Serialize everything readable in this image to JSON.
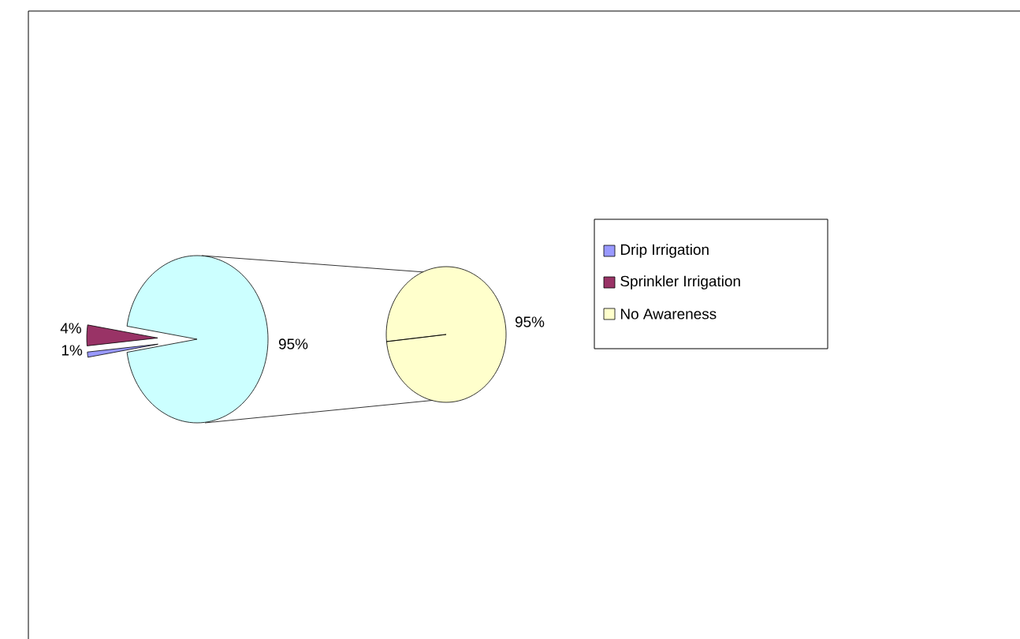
{
  "chart_data": {
    "type": "pie",
    "categories": [
      "Drip Irrigation",
      "Sprinkler Irrigation",
      "No Awareness"
    ],
    "series": [
      {
        "values": [
          1,
          4,
          95
        ],
        "colors": [
          "#9999ff",
          "#993366",
          "#ccffff"
        ],
        "value_labels": [
          "1%",
          "4%",
          "95%"
        ]
      },
      {
        "values": [
          null,
          null,
          95
        ],
        "colors": [
          null,
          null,
          "#ffffcc"
        ],
        "value_labels": [
          null,
          null,
          "95%"
        ]
      }
    ],
    "legend": "right"
  }
}
